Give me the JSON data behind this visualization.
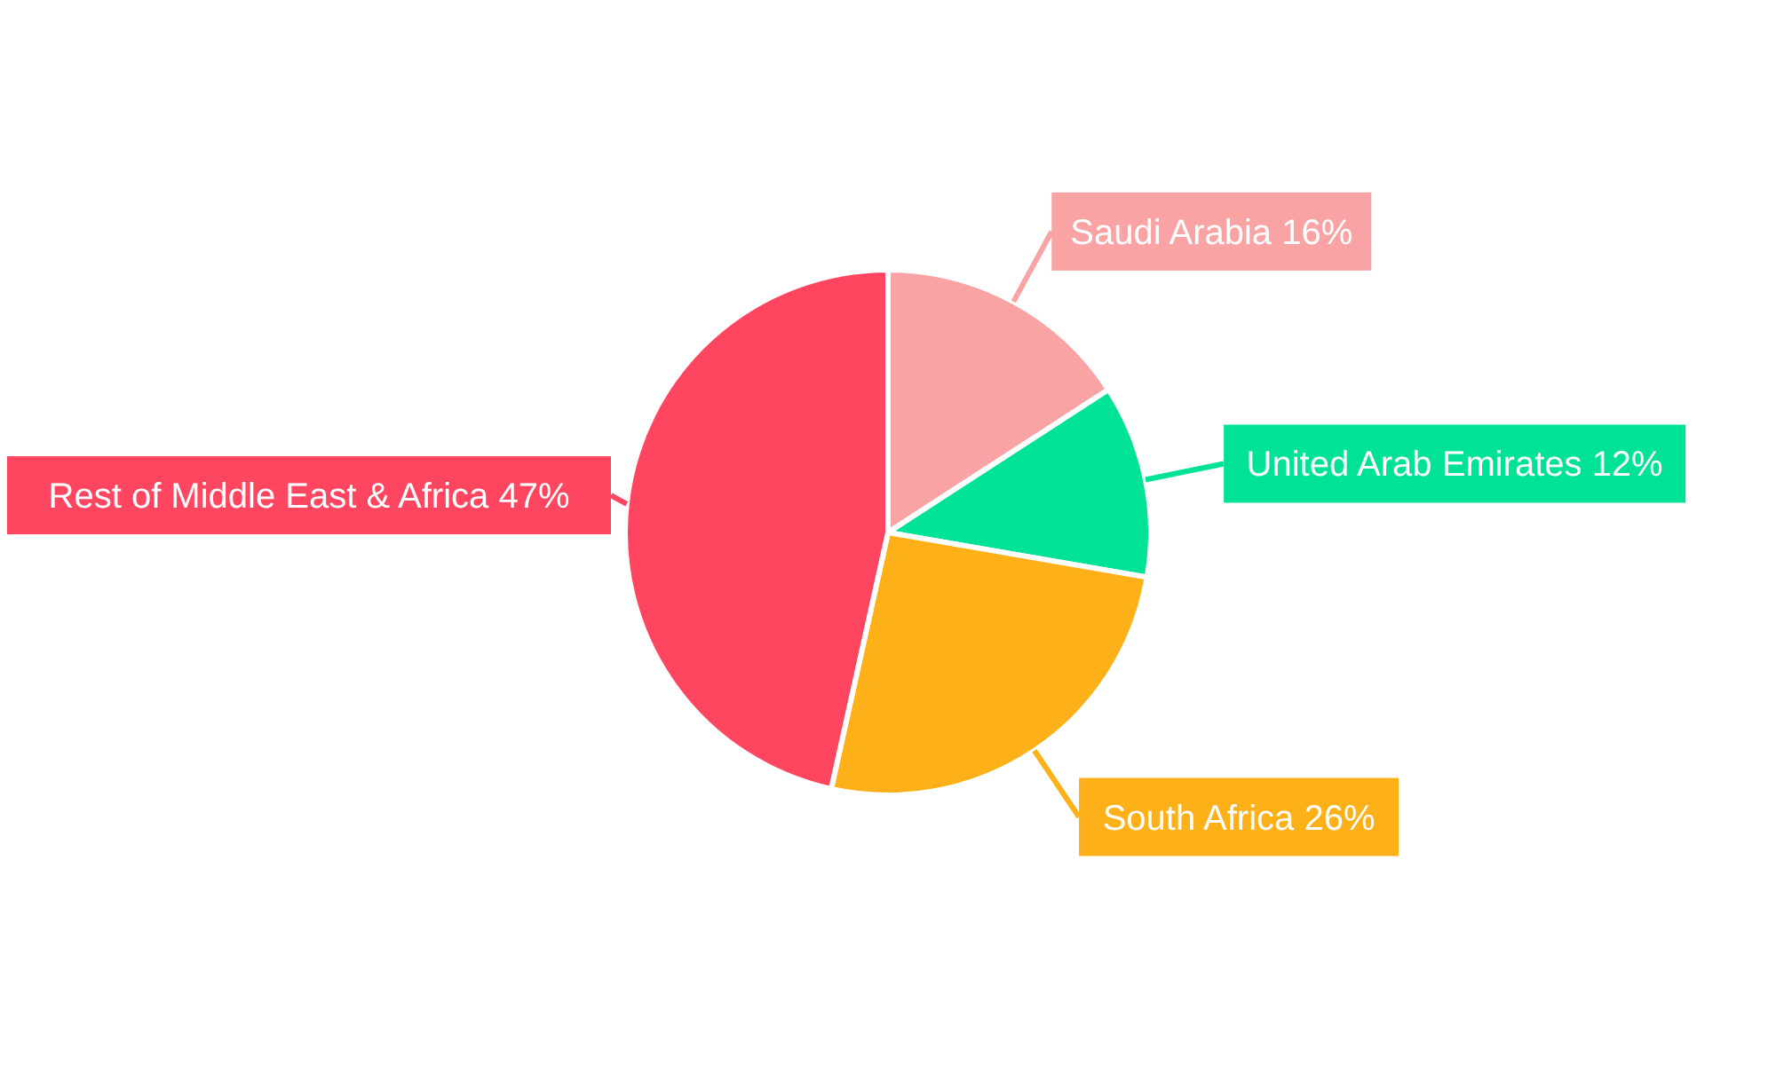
{
  "chart_data": {
    "type": "pie",
    "categories": [
      "Saudi Arabia",
      "United Arab Emirates",
      "South Africa",
      "Rest of Middle East & Africa"
    ],
    "values": [
      16,
      12,
      26,
      47
    ],
    "colors": [
      "#f9a3a4",
      "#00e396",
      "#feb019",
      "#ff4560"
    ],
    "value_labels": [
      "16%",
      "12%",
      "26%",
      "47%"
    ]
  }
}
